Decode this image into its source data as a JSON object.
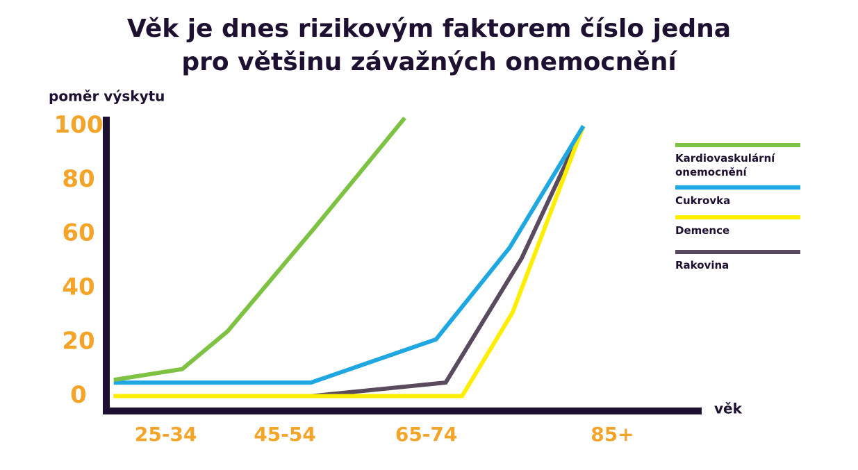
{
  "chart_data": {
    "type": "line",
    "title": "Věk je dnes rizikovým faktorem číslo jedna\npro většinu závažných onemocnění",
    "y_label": "poměr výskytu",
    "x_label": "věk",
    "xlim": [
      22,
      102
    ],
    "xticks": [
      {
        "value": 30,
        "label": "25-34"
      },
      {
        "value": 46,
        "label": "45-54"
      },
      {
        "value": 65,
        "label": "65-74"
      },
      {
        "value": 90,
        "label": "85+"
      }
    ],
    "ylim": [
      -5,
      104
    ],
    "yticks": [
      0,
      20,
      40,
      60,
      80,
      100
    ],
    "grid": false,
    "legend": "right",
    "series": [
      {
        "name": "Kardiovaskulární onemocnění",
        "color": "#7dc242",
        "x": [
          23,
          32.2,
          38.3,
          50.2,
          62.1
        ],
        "values": [
          6,
          10,
          24,
          63,
          103
        ]
      },
      {
        "name": "Cukrovka",
        "color": "#1ea7e1",
        "x": [
          23,
          49.5,
          66.3,
          76.2,
          86.1
        ],
        "values": [
          5,
          5,
          21,
          55,
          100
        ]
      },
      {
        "name": "Demence",
        "color": "#ffee00",
        "x": [
          23,
          49.5,
          69.8,
          76.6,
          86.1
        ],
        "values": [
          0,
          0,
          0,
          31,
          100
        ]
      },
      {
        "name": "Rakovina",
        "color": "#5a4a5e",
        "x": [
          23,
          49.5,
          67.6,
          77.8,
          86.1
        ],
        "values": [
          0,
          0,
          5,
          51,
          100
        ]
      }
    ]
  }
}
